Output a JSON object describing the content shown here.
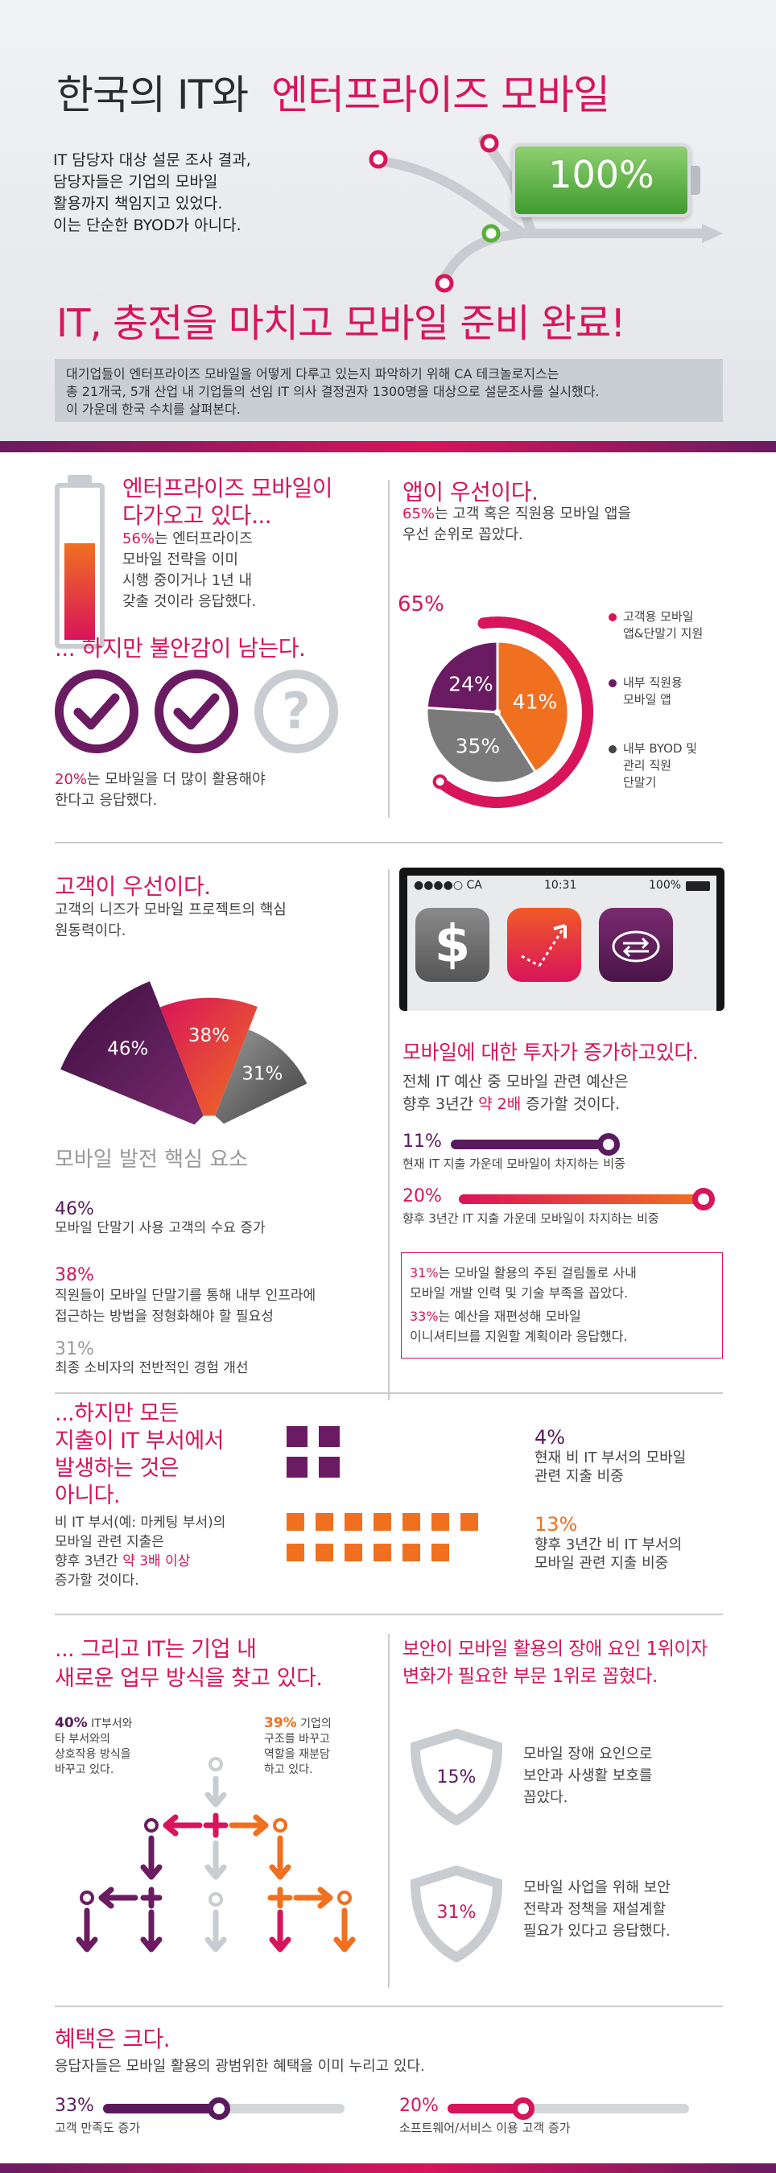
{
  "header": {
    "title_prefix": "한국의 IT와",
    "title_highlight": "엔터프라이즈 모바일",
    "intro_lines": [
      "IT 담당자 대상 설문 조사 결과,",
      "담당자들은 기업의 모바일",
      "활용까지 책임지고 있었다.",
      "이는 단순한 BYOD가 아니다."
    ],
    "battery_label": "100%",
    "headline": "IT, 충전을 마치고 모바일 준비 완료!",
    "desc_lines": [
      "대기업들이 엔터프라이즈 모바일을 어떻게 다루고 있는지 파악하기 위해 CA 테크놀로지스는",
      "총 21개국, 5개 산업 내 기업들의 선임 IT 의사 결정권자 1300명을 대상으로 설문조사를 실시했다.",
      "이 가운데 한국 수치를 살펴본다."
    ]
  },
  "section_mobile": {
    "title_lines": [
      "엔터프라이즈 모바일이",
      "다가오고 있다..."
    ],
    "stat": "56%",
    "text_lines": [
      "는 엔터프라이즈",
      "모바일 전략을 이미",
      "시행 중이거나 1년 내",
      "갖출 것이라 응답했다."
    ],
    "battery_fill": 0.56
  },
  "section_anxiety": {
    "title": "... 하지만 불안감이 남는다.",
    "stat": "20%",
    "text_lines": [
      "는 모바일을 더 많이 활용해야",
      "한다고 응답했다."
    ],
    "question_mark": "?"
  },
  "section_apps": {
    "title": "앱이 우선이다.",
    "stat": "65%",
    "text_lines": [
      "는 고객 혹은 직원용 모바일 앱을",
      "우선 순위로 꼽았다."
    ],
    "outer_label": "65%",
    "legend": [
      {
        "text_lines": [
          "고객용 모바일",
          "앱&단말기 지원"
        ],
        "color": "#d8145a"
      },
      {
        "text_lines": [
          "내부 직원용",
          "모바일 앱"
        ],
        "color": "#6b1b61"
      },
      {
        "text_lines": [
          "내부 BYOD 및",
          "관리 직원",
          "단말기"
        ],
        "color": "#444444"
      }
    ],
    "chart_data": {
      "type": "pie",
      "categories": [
        "내부 직원용 모바일 앱",
        "고객용 모바일 앱&단말기 지원",
        "내부 BYOD 및 관리 직원 단말기"
      ],
      "values": [
        24,
        41,
        35
      ],
      "labels": [
        "24%",
        "41%",
        "35%"
      ],
      "colors": [
        "#6b1b61",
        "#f07020",
        "#7a7a7a"
      ]
    }
  },
  "section_customer": {
    "title": "고객이 우선이다.",
    "text_lines": [
      "고객의 니즈가 모바일 프로젝트의 핵심",
      "원동력이다."
    ],
    "fan_caption": "모바일 발전 핵심 요소",
    "chart_data": {
      "type": "bar",
      "categories": [
        "모바일 단말기 사용 고객의 수요 증가",
        "직원들이 모바일 단말기를 통해 내부 인프라에 접근하는 방법을 정형화해야 할 필요성",
        "최종 소비자의 전반적인 경험 개선"
      ],
      "values": [
        46,
        38,
        31
      ],
      "labels": [
        "46%",
        "38%",
        "31%"
      ]
    },
    "items": [
      {
        "stat": "46%",
        "text_lines": [
          "모바일 단말기 사용 고객의 수요 증가"
        ]
      },
      {
        "stat": "38%",
        "text_lines": [
          "직원들이 모바일 단말기를 통해 내부 인프라에",
          "접근하는 방법을 정형화해야 할 필요성"
        ]
      },
      {
        "stat": "31%",
        "text_lines": [
          "최종 소비자의 전반적인 경험 개선"
        ]
      }
    ]
  },
  "phone": {
    "carrier": "●●●●○ CA",
    "time": "10:31",
    "battery": "100%",
    "app_icons": [
      "dollar-icon",
      "growth-arrow-icon",
      "cloud-sync-icon"
    ],
    "dollar_glyph": "$"
  },
  "section_invest": {
    "title": "모바일에 대한 투자가 증가하고있다.",
    "text_lines": [
      "전체 IT 예산 중 모바일 관련 예산은"
    ],
    "text_line2_prefix": "향후 3년간",
    "text_line2_highlight": "약 2배",
    "text_line2_suffix": "증가할 것이다.",
    "bars": [
      {
        "stat": "11%",
        "label": "현재 IT 지출 가운데 모바일이 차지하는 비중",
        "value": 11
      },
      {
        "stat": "20%",
        "label": "향후 3년간 IT 지출 가운데 모바일이 차지하는 비중",
        "value": 20
      }
    ],
    "box_stat1": "31%",
    "box_text1_lines": [
      "는 모바일 활용의 주된 걸림돌로 사내",
      "모바일 개발 인력 및 기술 부족을 꼽았다."
    ],
    "box_stat2": "33%",
    "box_text2_lines": [
      "는 예산을 재편성해 모바일",
      "이니셔티브를 지원할 계획이라 응답했다."
    ]
  },
  "section_spend": {
    "title_lines": [
      "...하지만 모든",
      "지출이 IT 부서에서",
      "발생하는 것은",
      "아니다."
    ],
    "text_lines": [
      "비 IT 부서(예: 마케팅 부서)의",
      "모바일 관련 지출은"
    ],
    "text_line3_prefix": "향후 3년간",
    "text_line3_highlight": "약 3배 이상",
    "text_line4": "증가할 것이다.",
    "stats": [
      {
        "stat": "4%",
        "text_lines": [
          "현재 비 IT 부서의 모바일",
          "관련 지출 비중"
        ],
        "squares": 4
      },
      {
        "stat": "13%",
        "text_lines": [
          "향후 3년간 비 IT 부서의",
          "모바일 관련 지출 비중"
        ],
        "squares": 13
      }
    ]
  },
  "section_work": {
    "title_lines": [
      "... 그리고 IT는 기업 내",
      "새로운 업무 방식을 찾고 있다."
    ],
    "stat_a": "40%",
    "text_a_lines": [
      "IT부서와",
      "타 부서와의",
      "상호작용 방식을",
      "바꾸고 있다."
    ],
    "stat_b": "39%",
    "text_b_lines": [
      "기업의",
      "구조를 바꾸고",
      "역할을 재분담",
      "하고 있다."
    ]
  },
  "section_security": {
    "title_lines": [
      "보안이 모바일 활용의 장애 요인 1위이자",
      "변화가 필요한 부문 1위로 꼽혔다."
    ],
    "items": [
      {
        "stat": "15%",
        "text_lines": [
          "모바일 장애 요인으로",
          "보안과 사생활 보호를",
          "꼽았다."
        ]
      },
      {
        "stat": "31%",
        "text_lines": [
          "모바일 사업을 위해 보안",
          "전략과 정책을 재설계할",
          "필요가 있다고 응답했다."
        ]
      }
    ]
  },
  "section_benefit": {
    "title": "혜택은 크다.",
    "text": "응답자들은 모바일 활용의 광범위한 혜택을 이미 누리고 있다.",
    "bars": [
      {
        "stat": "33%",
        "label": "고객 만족도 증가",
        "value": 33
      },
      {
        "stat": "20%",
        "label": "소프트웨어/서비스 이용 고객 증가",
        "value": 20
      }
    ]
  }
}
